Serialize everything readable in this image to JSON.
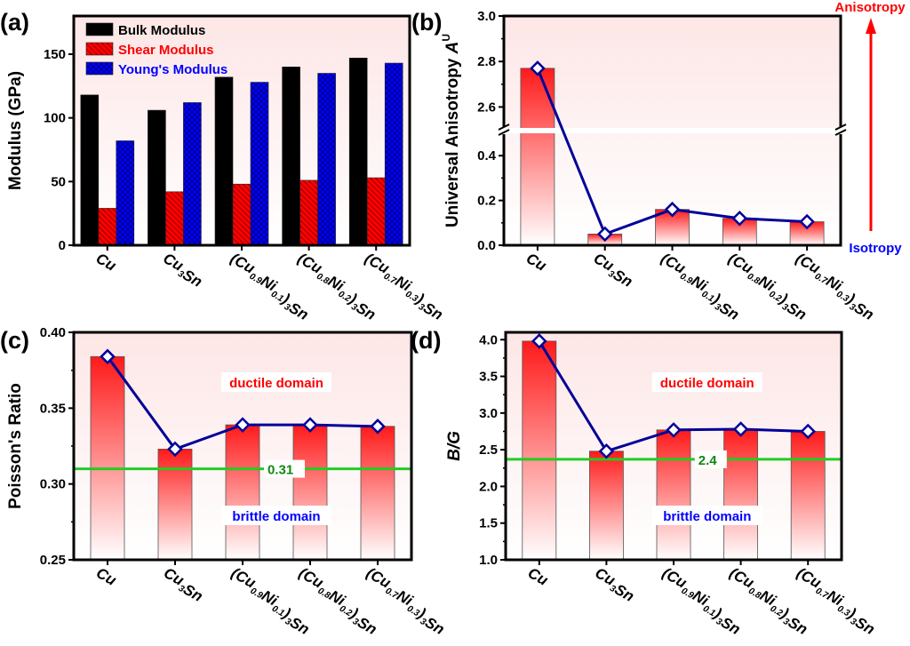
{
  "panel_labels": [
    "(a)",
    "(b)",
    "(c)",
    "(d)"
  ],
  "categories": [
    [
      {
        "t": "Cu"
      }
    ],
    [
      {
        "t": "Cu"
      },
      {
        "s": "3"
      },
      {
        "t": "Sn"
      }
    ],
    [
      {
        "t": "(Cu"
      },
      {
        "s": "0.9"
      },
      {
        "t": "Ni"
      },
      {
        "s": "0.1"
      },
      {
        "t": ")"
      },
      {
        "s": "3"
      },
      {
        "t": "Sn"
      }
    ],
    [
      {
        "t": "(Cu"
      },
      {
        "s": "0.8"
      },
      {
        "t": "Ni"
      },
      {
        "s": "0.2"
      },
      {
        "t": ")"
      },
      {
        "s": "3"
      },
      {
        "t": "Sn"
      }
    ],
    [
      {
        "t": "(Cu"
      },
      {
        "s": "0.7"
      },
      {
        "t": "Ni"
      },
      {
        "s": "0.3"
      },
      {
        "t": ")"
      },
      {
        "s": "3"
      },
      {
        "t": "Sn"
      }
    ]
  ],
  "colors": {
    "bulk": "#000000",
    "shear": "#ff0000",
    "young": "#0000ff",
    "line": "#000099",
    "threshold": "#22cc22",
    "ductile": "#ff0000",
    "brittle": "#0000ff",
    "bg": "#fdeaea"
  },
  "chart_data": [
    {
      "panel": "(a)",
      "type": "bar",
      "ylabel": [
        {
          "t": "Modulus (GPa)"
        }
      ],
      "ylim": [
        0,
        180
      ],
      "yticks": [
        "0",
        "50",
        "100",
        "150"
      ],
      "ytick_values": [
        0,
        50,
        100,
        150
      ],
      "legend_position": "top-left",
      "series": [
        {
          "name": "Bulk Modulus",
          "values": [
            118,
            106,
            132,
            140,
            147
          ],
          "pattern": "solid"
        },
        {
          "name": "Shear Modulus",
          "values": [
            29,
            42,
            48,
            51,
            53
          ],
          "pattern": "hatch"
        },
        {
          "name": "Young's Modulus",
          "values": [
            82,
            112,
            128,
            135,
            143
          ],
          "pattern": "crosshatch"
        }
      ]
    },
    {
      "panel": "(b)",
      "type": "bar+line",
      "ylabel": [
        {
          "t": "Universal Anisotropy "
        },
        {
          "i": "A"
        },
        {
          "sup": "U"
        }
      ],
      "ylim_lower": [
        0,
        0.5
      ],
      "ylim_upper": [
        2.5,
        3.0
      ],
      "axis_break": true,
      "yticks": [
        "0.0",
        "0.2",
        "0.4",
        "2.6",
        "2.8",
        "3.0"
      ],
      "ytick_values": [
        0,
        0.2,
        0.4,
        2.6,
        2.8,
        3.0
      ],
      "values": [
        2.77,
        0.05,
        0.16,
        0.12,
        0.105
      ],
      "arrow_top_label": "Anisotropy",
      "arrow_bottom_label": "Isotropy"
    },
    {
      "panel": "(c)",
      "type": "bar+line",
      "ylabel": [
        {
          "t": "Poisson's Ratio"
        }
      ],
      "ylim": [
        0.25,
        0.4
      ],
      "yticks": [
        "0.25",
        "0.30",
        "0.35",
        "0.40"
      ],
      "ytick_values": [
        0.25,
        0.3,
        0.35,
        0.4
      ],
      "values": [
        0.384,
        0.323,
        0.339,
        0.339,
        0.338
      ],
      "threshold": {
        "value": 0.31,
        "label": "0.31"
      },
      "annotations": {
        "upper": "ductile domain",
        "lower": "brittle domain"
      }
    },
    {
      "panel": "(d)",
      "type": "bar+line",
      "ylabel": [
        {
          "i": "B/G"
        }
      ],
      "ylim": [
        1.0,
        4.1
      ],
      "yticks": [
        "1.0",
        "1.5",
        "2.0",
        "2.5",
        "3.0",
        "3.5",
        "4.0"
      ],
      "ytick_values": [
        1.0,
        1.5,
        2.0,
        2.5,
        3.0,
        3.5,
        4.0
      ],
      "values": [
        3.98,
        2.48,
        2.77,
        2.78,
        2.75
      ],
      "threshold": {
        "value": 2.37,
        "label": "2.4"
      },
      "annotations": {
        "upper": "ductile domain",
        "lower": "brittle domain"
      }
    }
  ]
}
